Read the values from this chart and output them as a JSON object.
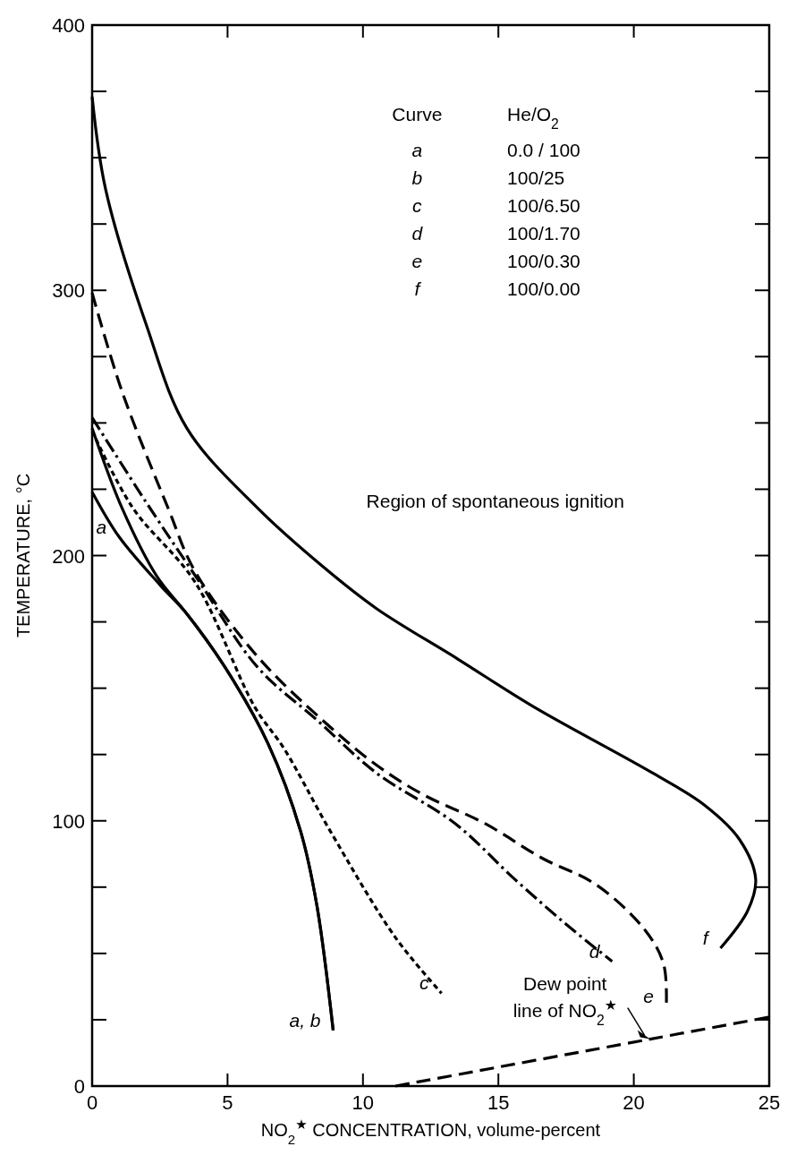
{
  "chart_data": {
    "type": "line",
    "xlabel": "NO$_{2}$$^{★}$ CONCENTRATION, volume-percent",
    "ylabel": "TEMPERATURE, °C",
    "xlim": [
      0,
      25
    ],
    "xticks": [
      0,
      5,
      10,
      15,
      20,
      25
    ],
    "ylim": [
      0,
      400
    ],
    "yticks": [
      0,
      {
        "value": 25,
        "label": null
      },
      {
        "value": 50,
        "label": null
      },
      {
        "value": 75,
        "label": null
      },
      100,
      {
        "value": 125,
        "label": null
      },
      {
        "value": 150,
        "label": null
      },
      {
        "value": 175,
        "label": null
      },
      200,
      {
        "value": 225,
        "label": null
      },
      {
        "value": 250,
        "label": null
      },
      {
        "value": 275,
        "label": null
      },
      300,
      {
        "value": 325,
        "label": null
      },
      {
        "value": 350,
        "label": null
      },
      {
        "value": 375,
        "label": null
      },
      400
    ],
    "grid": false,
    "marker": "none",
    "series": [
      {
        "color": "#000000",
        "line_style": "solid",
        "x": [
          0,
          1,
          2.5,
          3.5,
          4.9,
          6.5,
          7.7,
          8.3,
          8.9
        ],
        "values": [
          224,
          207,
          189,
          178,
          158,
          129,
          96,
          68,
          21
        ]
      },
      {
        "color": "#000000",
        "line_style": "solid",
        "x": [
          0,
          1.1,
          2.4,
          3.5,
          4.9,
          6.5,
          7.7,
          8.3,
          8.9
        ],
        "values": [
          248,
          218,
          192,
          178,
          158,
          129,
          96,
          68,
          21
        ]
      },
      {
        "color": "#000000",
        "line_style": "dotted",
        "x": [
          0,
          1.5,
          3.8,
          6.0,
          7.1,
          8.8,
          11.2,
          12.9
        ],
        "values": [
          247,
          218,
          190,
          143,
          127,
          96,
          56,
          35
        ]
      },
      {
        "color": "#000000",
        "line_style": "dashdot",
        "x": [
          0,
          2,
          3.9,
          6.1,
          8.3,
          10.5,
          13.4,
          15.6,
          17.5,
          19.2
        ],
        "values": [
          252,
          220,
          191,
          158,
          138,
          118,
          99,
          78,
          61,
          47
        ]
      },
      {
        "color": "#000000",
        "line_style": "dashed",
        "x": [
          0,
          1.1,
          2.8,
          3.8,
          6.1,
          8.5,
          10.5,
          12.2,
          14.5,
          16.6,
          18.6,
          20.4,
          21.1,
          21.2
        ],
        "values": [
          299,
          262,
          218,
          194,
          162,
          138,
          121,
          110,
          99,
          86,
          76,
          59,
          46,
          30
        ]
      },
      {
        "color": "#000000",
        "line_style": "solid",
        "x": [
          0,
          0.5,
          2.0,
          3.5,
          6.1,
          8.5,
          10.5,
          13.5,
          16.3,
          20.7,
          22.6,
          23.9,
          24.5,
          24.2,
          23.2
        ],
        "values": [
          373,
          338,
          287,
          248,
          218,
          196,
          180,
          161,
          143,
          118,
          106,
          93,
          78,
          66,
          52
        ]
      },
      {
        "color": "#000000",
        "line_style": "dashed",
        "x": [
          11.2,
          20.6,
          25
        ],
        "values": [
          0,
          17.7,
          26
        ]
      }
    ],
    "annotations": [
      {
        "text": "a",
        "x": 1,
        "y": 207
      },
      {
        "text": "a, b",
        "x": 8.9,
        "y": 21
      },
      {
        "text": "c",
        "x": 12.9,
        "y": 35
      },
      {
        "text": "d",
        "x": 19.2,
        "y": 47
      },
      {
        "text": "e",
        "x": 21.2,
        "y": 30
      },
      {
        "text": "f",
        "x": 23.2,
        "y": 52
      },
      {
        "text": "Dew point\nline of NO$_{2}$$^{★}$",
        "x": 20.6,
        "y": 17.7
      },
      "Region of spontaneous ignition",
      "Curve",
      "He/O$_{2}$",
      "a",
      "0.0 / 100",
      "b",
      "100/25",
      "c",
      "100/6.50",
      "d",
      "100/1.70",
      "e",
      "100/0.30",
      "f",
      "100/0.00"
    ]
  }
}
